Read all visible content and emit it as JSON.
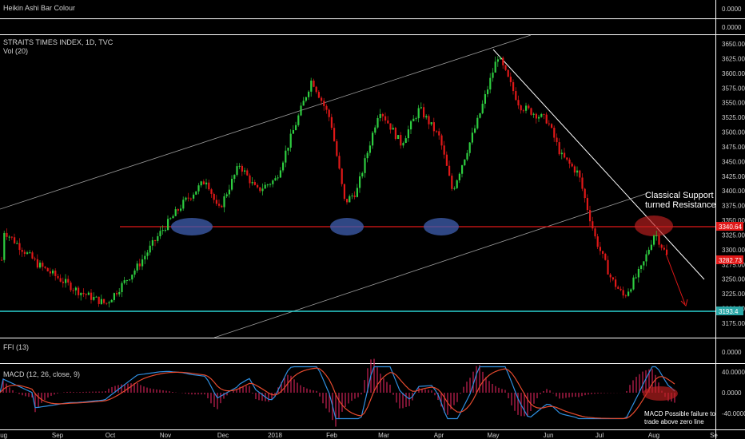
{
  "panes": {
    "heikin": {
      "label": "Heikin Ashi Bar Colour",
      "value": "0.0000"
    },
    "main": {
      "title": "STRAITS TIMES INDEX, 1D, TVC",
      "vol_label": "Vol (20)"
    },
    "ffi": {
      "label": "FFI (13)",
      "value": "0.0000"
    },
    "macd": {
      "label": "MACD (12, 26, close, 9)",
      "ticks": [
        "40.0000",
        "0.0000",
        "-40.0000"
      ]
    }
  },
  "annotations": {
    "support_line1": "Classical Support",
    "support_line2": "turned Resistance",
    "macd_line1": "MACD Possible failure to",
    "macd_line2": "trade above zero line"
  },
  "price_badges": {
    "support": "3340.64",
    "last": "3282.73",
    "teal": "3193.4"
  },
  "colors": {
    "up": "#2ecc40",
    "down": "#e01818",
    "macd": "#2f8fe0",
    "signal": "#e64a2e",
    "hist": "#cc2255",
    "support": "#e01818",
    "teal": "#2ad1d1",
    "ellipse": "#3f5fb0"
  },
  "chart_data": {
    "type": "line",
    "title": "STRAITS TIMES INDEX, 1D, TVC",
    "xlabel": "",
    "ylabel": "",
    "ylim": [
      3162,
      3660
    ],
    "yticks": [
      3650,
      3625,
      3600,
      3575,
      3550,
      3525,
      3500,
      3475,
      3450,
      3425,
      3400,
      3375,
      3350,
      3325,
      3300,
      3275,
      3250,
      3225,
      3200,
      3175
    ],
    "xticks": [
      "Aug",
      "Sep",
      "Oct",
      "Nov",
      "Dec",
      "2018",
      "Feb",
      "Mar",
      "Apr",
      "May",
      "Jun",
      "Jul",
      "Aug",
      "Se"
    ],
    "support_level": 3340.64,
    "last_price": 3282.73,
    "teal_level": 3193.4,
    "price_path": [
      {
        "d": "2017-08-01",
        "v": 3335
      },
      {
        "d": "2017-08-20",
        "v": 3275
      },
      {
        "d": "2017-09-12",
        "v": 3230
      },
      {
        "d": "2017-09-28",
        "v": 3208
      },
      {
        "d": "2017-10-15",
        "v": 3270
      },
      {
        "d": "2017-10-28",
        "v": 3330
      },
      {
        "d": "2017-11-10",
        "v": 3380
      },
      {
        "d": "2017-11-22",
        "v": 3420
      },
      {
        "d": "2017-11-28",
        "v": 3365
      },
      {
        "d": "2017-12-10",
        "v": 3445
      },
      {
        "d": "2017-12-20",
        "v": 3400
      },
      {
        "d": "2017-12-31",
        "v": 3420
      },
      {
        "d": "2018-01-20",
        "v": 3590
      },
      {
        "d": "2018-01-30",
        "v": 3520
      },
      {
        "d": "2018-02-08",
        "v": 3380
      },
      {
        "d": "2018-02-15",
        "v": 3400
      },
      {
        "d": "2018-02-28",
        "v": 3540
      },
      {
        "d": "2018-03-10",
        "v": 3480
      },
      {
        "d": "2018-03-20",
        "v": 3540
      },
      {
        "d": "2018-03-31",
        "v": 3490
      },
      {
        "d": "2018-04-08",
        "v": 3400
      },
      {
        "d": "2018-04-22",
        "v": 3520
      },
      {
        "d": "2018-05-03",
        "v": 3630
      },
      {
        "d": "2018-05-15",
        "v": 3545
      },
      {
        "d": "2018-05-30",
        "v": 3520
      },
      {
        "d": "2018-06-08",
        "v": 3460
      },
      {
        "d": "2018-06-18",
        "v": 3430
      },
      {
        "d": "2018-06-28",
        "v": 3320
      },
      {
        "d": "2018-07-07",
        "v": 3250
      },
      {
        "d": "2018-07-14",
        "v": 3220
      },
      {
        "d": "2018-07-24",
        "v": 3270
      },
      {
        "d": "2018-08-01",
        "v": 3330
      },
      {
        "d": "2018-08-08",
        "v": 3282.73
      }
    ]
  }
}
